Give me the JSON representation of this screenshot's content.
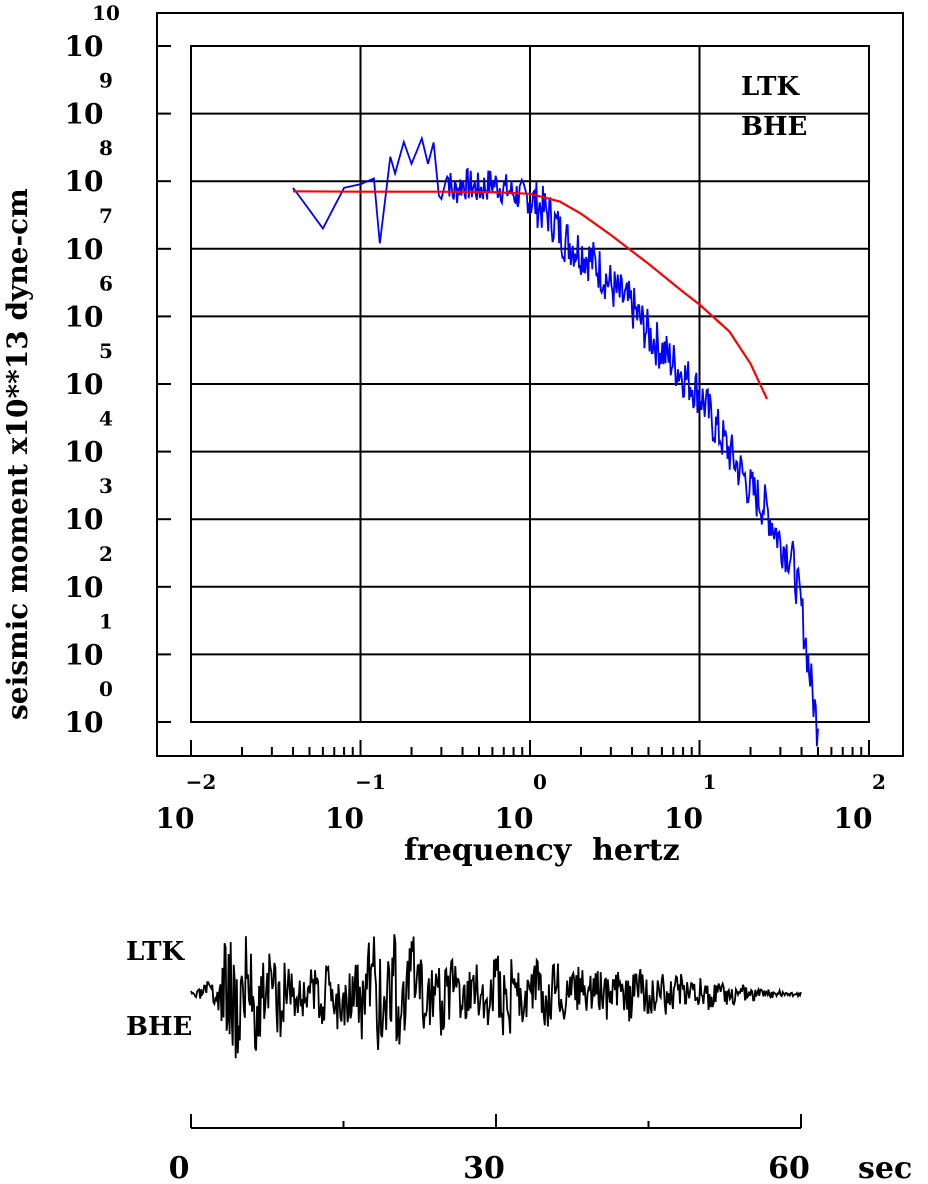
{
  "chart_data": [
    {
      "type": "line",
      "title": "",
      "xlabel": "frequency  hertz",
      "ylabel": "seismic moment x10**13 dyne-cm",
      "x_scale": "log",
      "y_scale": "log",
      "xlim": [
        0.01,
        100
      ],
      "ylim": [
        1,
        10000000000
      ],
      "grid": true,
      "x_ticks": [
        {
          "base": "10",
          "exp": "−2"
        },
        {
          "base": "10",
          "exp": "−1"
        },
        {
          "base": "10",
          "exp": "0"
        },
        {
          "base": "10",
          "exp": "1"
        },
        {
          "base": "10",
          "exp": "2"
        }
      ],
      "y_ticks": [
        {
          "base": "10",
          "exp": "0"
        },
        {
          "base": "10",
          "exp": "1"
        },
        {
          "base": "10",
          "exp": "2"
        },
        {
          "base": "10",
          "exp": "3"
        },
        {
          "base": "10",
          "exp": "4"
        },
        {
          "base": "10",
          "exp": "5"
        },
        {
          "base": "10",
          "exp": "6"
        },
        {
          "base": "10",
          "exp": "7"
        },
        {
          "base": "10",
          "exp": "8"
        },
        {
          "base": "10",
          "exp": "9"
        },
        {
          "base": "10",
          "exp": "10"
        }
      ],
      "annotations": [
        "LTK",
        "BHE"
      ],
      "colors": {
        "spectrum": "#0000ff",
        "model": "#ff0000",
        "axes": "#000000"
      },
      "series": [
        {
          "role": "observed spectrum",
          "color": "#0000ff",
          "x": [
            0.04,
            0.06,
            0.08,
            0.1,
            0.12,
            0.13,
            0.15,
            0.16,
            0.18,
            0.2,
            0.23,
            0.25,
            0.27,
            0.29,
            0.3,
            0.32,
            0.35,
            0.4,
            0.5,
            0.6,
            0.8,
            1.0,
            1.3,
            1.6,
            2.0,
            2.5,
            3.2,
            4.0,
            5.0,
            6.3,
            8.0,
            10,
            12,
            14,
            16,
            18,
            20,
            25,
            30,
            35,
            40,
            45,
            50
          ],
          "y": [
            80000000,
            20000000,
            80000000,
            90000000,
            110000000,
            12000000,
            230000000,
            130000000,
            380000000,
            180000000,
            430000000,
            180000000,
            400000000,
            60000000,
            90000000,
            150000000,
            70000000,
            100000000,
            80000000,
            100000000,
            70000000,
            60000000,
            35000000,
            15000000,
            10000000,
            6000000,
            2500000,
            1500000,
            600000,
            300000,
            150000,
            80000,
            30000,
            15000,
            8000,
            5000,
            3000,
            1500,
            500,
            300,
            50,
            5,
            0.8
          ]
        },
        {
          "role": "model spectrum",
          "color": "#ff0000",
          "x": [
            0.04,
            0.1,
            0.3,
            0.6,
            1.0,
            1.5,
            2.0,
            3.0,
            5.0,
            8.0,
            10,
            15,
            20,
            25
          ],
          "y": [
            71000000,
            70000000,
            70000000,
            69000000,
            65000000,
            50000000,
            33000000,
            16000000,
            6000000,
            2300000,
            1500000,
            600000,
            200000,
            60000
          ]
        }
      ]
    },
    {
      "type": "line",
      "title": "",
      "xlabel": "sec",
      "x_ticks": [
        "0",
        "30",
        "60"
      ],
      "xlim": [
        0,
        60
      ],
      "labels": [
        "LTK",
        "BHE"
      ],
      "series": [
        {
          "role": "waveform",
          "color": "#000000"
        }
      ]
    }
  ]
}
